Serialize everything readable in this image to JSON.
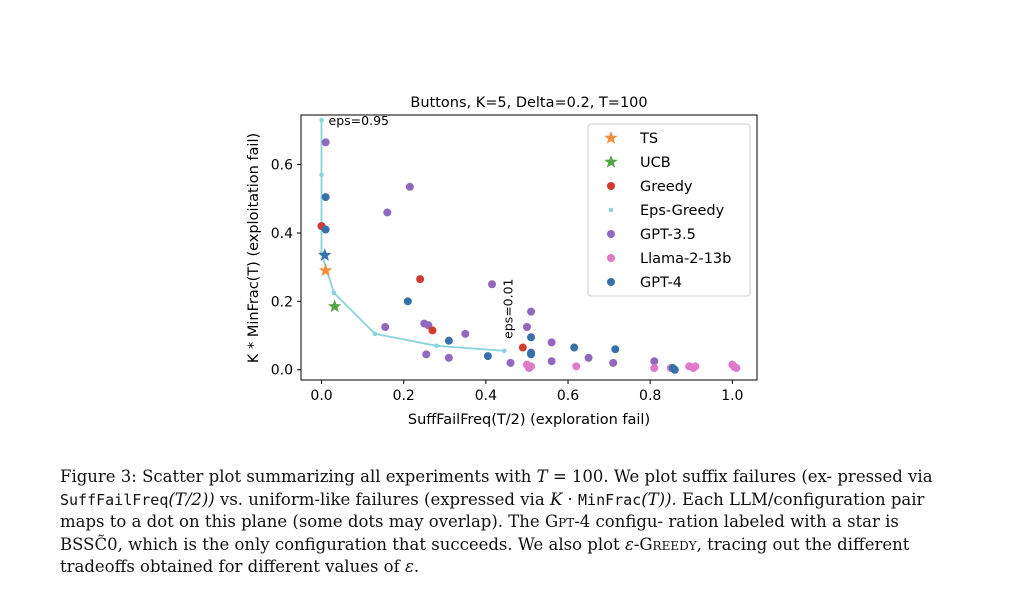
{
  "chart_data": {
    "type": "scatter",
    "title": "Buttons, K=5, Delta=0.2, T=100",
    "xlabel": "SuffFailFreq(T/2) (exploration fail)",
    "ylabel": "K * MinFrac(T) (exploitation fail)",
    "xlim": [
      -0.05,
      1.06
    ],
    "ylim": [
      -0.03,
      0.745
    ],
    "xticks": [
      "0.0",
      "0.2",
      "0.4",
      "0.6",
      "0.8",
      "1.0"
    ],
    "yticks": [
      "0.0",
      "0.2",
      "0.4",
      "0.6"
    ],
    "legend_position": "top-right",
    "series": [
      {
        "name": "TS",
        "marker": "star",
        "color": "#f2913a",
        "points": [
          [
            0.01,
            0.29
          ]
        ]
      },
      {
        "name": "UCB",
        "marker": "star",
        "color": "#55a146",
        "points": [
          [
            0.032,
            0.185
          ]
        ]
      },
      {
        "name": "Greedy",
        "marker": "circle",
        "color": "#d23b30",
        "points": [
          [
            0.24,
            0.265
          ],
          [
            0.27,
            0.115
          ],
          [
            0.49,
            0.065
          ],
          [
            0.0,
            0.42
          ]
        ]
      },
      {
        "name": "Eps-Greedy",
        "marker": "small-dot-line",
        "color": "#87d4de",
        "points": [
          [
            0.0,
            0.73
          ],
          [
            0.0,
            0.57
          ],
          [
            0.0,
            0.34
          ],
          [
            0.03,
            0.225
          ],
          [
            0.13,
            0.105
          ],
          [
            0.28,
            0.07
          ],
          [
            0.445,
            0.055
          ]
        ]
      },
      {
        "name": "GPT-3.5",
        "marker": "circle",
        "color": "#9068bd",
        "points": [
          [
            0.01,
            0.665
          ],
          [
            0.215,
            0.535
          ],
          [
            0.16,
            0.46
          ],
          [
            0.0,
            0.42
          ],
          [
            0.415,
            0.25
          ],
          [
            0.51,
            0.17
          ],
          [
            0.25,
            0.135
          ],
          [
            0.26,
            0.13
          ],
          [
            0.155,
            0.125
          ],
          [
            0.35,
            0.105
          ],
          [
            0.5,
            0.125
          ],
          [
            0.56,
            0.08
          ],
          [
            0.255,
            0.045
          ],
          [
            0.31,
            0.035
          ],
          [
            0.46,
            0.02
          ],
          [
            0.56,
            0.025
          ],
          [
            0.65,
            0.035
          ],
          [
            0.71,
            0.02
          ],
          [
            0.81,
            0.025
          ]
        ]
      },
      {
        "name": "Llama-2-13b",
        "marker": "circle",
        "color": "#de7ac8",
        "points": [
          [
            0.5,
            0.015
          ],
          [
            0.505,
            0.005
          ],
          [
            0.51,
            0.01
          ],
          [
            0.62,
            0.01
          ],
          [
            0.81,
            0.005
          ],
          [
            0.85,
            0.005
          ],
          [
            0.895,
            0.01
          ],
          [
            0.905,
            0.005
          ],
          [
            0.91,
            0.01
          ],
          [
            1.0,
            0.015
          ],
          [
            1.005,
            0.008
          ],
          [
            1.01,
            0.005
          ]
        ]
      },
      {
        "name": "GPT-4",
        "marker": "circle",
        "color": "#3770aa",
        "points": [
          [
            0.01,
            0.505
          ],
          [
            0.01,
            0.41
          ],
          [
            0.21,
            0.2
          ],
          [
            0.31,
            0.085
          ],
          [
            0.405,
            0.04
          ],
          [
            0.51,
            0.095
          ],
          [
            0.51,
            0.05
          ],
          [
            0.51,
            0.045
          ],
          [
            0.615,
            0.065
          ],
          [
            0.715,
            0.06
          ],
          [
            0.86,
            0.0
          ],
          [
            0.855,
            0.005
          ]
        ]
      },
      {
        "name": "GPT-4-star",
        "marker": "star",
        "color": "#3770aa",
        "points": [
          [
            0.008,
            0.335
          ]
        ]
      }
    ],
    "annotations": [
      {
        "text": "eps=0.95",
        "x": 0.0,
        "y": 0.73,
        "rotate": 0
      },
      {
        "text": "eps=0.01",
        "x": 0.445,
        "y": 0.055,
        "rotate": -90
      }
    ]
  },
  "caption": {
    "label": "Figure 3:",
    "t1": "Scatter plot summarizing all experiments with",
    "T": "T",
    "eq": "= 100.",
    "t2": "We plot suffix failures (ex-",
    "t3": "pressed via",
    "suff": "SuffFailFreq",
    "t2arg": "(T/2))",
    "t4": "vs.  uniform-like failures (expressed via",
    "K": "K",
    "dot": "·",
    "minfrac": "MinFrac",
    "targ": "(T)).",
    "t5": "Each",
    "line3": "LLM/configuration pair maps to a dot on this plane (some dots may overlap). The",
    "gpt4": "Gpt-4",
    "t6": "configu-",
    "line4a": "ration labeled with a star is BSS",
    "tildeC": "C̃",
    "line4b": "0, which is the only configuration that succeeds. We also plot",
    "eps": "ε",
    "greedy": "-Greedy",
    "line5": ", tracing out the different tradeoffs obtained for different values of",
    "eps2": "ε",
    "end": "."
  }
}
